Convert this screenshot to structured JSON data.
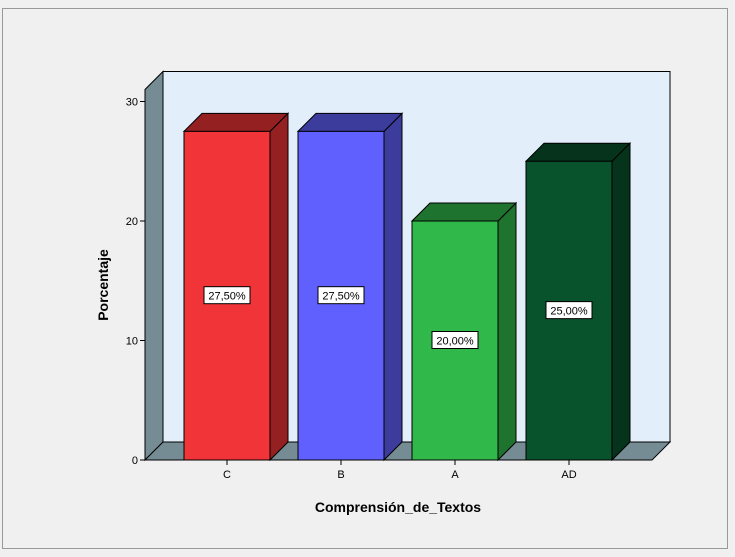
{
  "chart_data": {
    "type": "bar",
    "categories": [
      "C",
      "B",
      "A",
      "AD"
    ],
    "values": [
      27.5,
      27.5,
      20.0,
      25.0
    ],
    "data_labels": [
      "27,50%",
      "27,50%",
      "20,00%",
      "25,00%"
    ],
    "bar_colors": [
      "#f03437",
      "#6060fe",
      "#30b94a",
      "#08532b"
    ],
    "xlabel": "Comprensión_de_Textos",
    "ylabel": "Porcentaje",
    "ylim": [
      0,
      30
    ],
    "yticks": [
      0,
      10,
      20,
      30
    ],
    "yticklabels": [
      "0",
      "10",
      "20",
      "30"
    ],
    "three_d": true,
    "grid": false,
    "background": "#e3eefb"
  }
}
